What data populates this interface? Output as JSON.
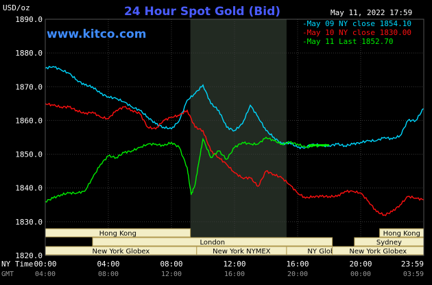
{
  "header": {
    "title": "24 Hour Spot Gold (Bid)",
    "unit": "USD/oz",
    "timestamp": "May 11, 2022 17:59",
    "site": "www.kitco.com"
  },
  "axis_labels": {
    "ny_time": "NY Time",
    "gmt": "GMT"
  },
  "colors": {
    "background": "#000000",
    "grid": "#3a3a3a",
    "highlight": "#222a22",
    "series_may09": "#00d8ff",
    "series_may10": "#ff1010",
    "series_may11": "#00ee00",
    "market_bar": "#f3eec6",
    "market_border": "#b09a50"
  },
  "chart_data": {
    "type": "line",
    "title": "24 Hour Spot Gold (Bid)",
    "ylabel": "USD/oz",
    "xlabel": "",
    "xlim": [
      0,
      24
    ],
    "ylim": [
      1820,
      1890
    ],
    "grid": true,
    "legend_position": "top-right",
    "y_ticks": [
      "1820.0",
      "1830.0",
      "1840.0",
      "1850.0",
      "1860.0",
      "1870.0",
      "1880.0",
      "1890.0"
    ],
    "x_ticks_ny": [
      "00:00",
      "04:00",
      "08:00",
      "12:00",
      "16:00",
      "20:00",
      "23:59"
    ],
    "x_ticks_gmt": [
      "04:00",
      "08:00",
      "12:00",
      "16:00",
      "20:00",
      "00:00",
      "03:59"
    ],
    "series": [
      {
        "name": "May 09 NY close 1854.10",
        "x": [
          0,
          0.5,
          1,
          1.5,
          2,
          2.5,
          3,
          3.5,
          4,
          4.5,
          5,
          5.5,
          6,
          6.5,
          7,
          7.5,
          8,
          8.5,
          9,
          9.5,
          10,
          10.5,
          11,
          11.5,
          12,
          12.5,
          13,
          13.5,
          14,
          14.5,
          15,
          15.5,
          16,
          16.5,
          17,
          17.5,
          18,
          18.5,
          19,
          19.5,
          20,
          20.5,
          21,
          21.5,
          22,
          22.5,
          23,
          23.5,
          23.98
        ],
        "values": [
          1875.5,
          1876,
          1875,
          1874,
          1872,
          1870.5,
          1870,
          1868,
          1867,
          1866.5,
          1865.5,
          1864,
          1863,
          1861,
          1859,
          1858,
          1857.5,
          1860,
          1866,
          1868,
          1870.5,
          1865,
          1863,
          1858,
          1857,
          1859,
          1864.5,
          1861,
          1857,
          1855,
          1853,
          1853.5,
          1852,
          1852,
          1853,
          1852.5,
          1852.5,
          1853,
          1852.5,
          1853,
          1853.5,
          1854,
          1854,
          1855,
          1854.5,
          1855.5,
          1860,
          1860,
          1863.5
        ]
      },
      {
        "name": "May 10 NY close 1830.00",
        "x": [
          0,
          0.5,
          1,
          1.5,
          2,
          2.5,
          3,
          3.5,
          4,
          4.5,
          5,
          5.5,
          6,
          6.5,
          7,
          7.5,
          8,
          8.5,
          9,
          9.5,
          10,
          10.5,
          11,
          11.5,
          12,
          12.5,
          13,
          13.5,
          14,
          14.5,
          15,
          15.5,
          16,
          16.5,
          17,
          17.5,
          18,
          18.5,
          19,
          19.5,
          20,
          20.5,
          21,
          21.5,
          22,
          22.5,
          23,
          23.5,
          23.98
        ],
        "values": [
          1865,
          1864.5,
          1864,
          1864,
          1863,
          1862,
          1862.5,
          1861,
          1860.5,
          1863,
          1864,
          1863,
          1862,
          1858,
          1857.5,
          1860,
          1861,
          1861.5,
          1863,
          1858,
          1857,
          1851,
          1849,
          1847,
          1844.5,
          1843,
          1843,
          1840.5,
          1845,
          1844,
          1843,
          1841,
          1838.5,
          1837,
          1837.5,
          1837.5,
          1837.5,
          1837.5,
          1839,
          1839,
          1838.5,
          1836,
          1833,
          1832,
          1833,
          1835,
          1837.5,
          1837,
          1836.5
        ]
      },
      {
        "name": "May 11 Last 1852.70",
        "x": [
          0,
          0.5,
          1,
          1.5,
          2,
          2.5,
          3,
          3.5,
          4,
          4.5,
          5,
          5.5,
          6,
          6.5,
          7,
          7.5,
          8,
          8.5,
          9,
          9.25,
          9.5,
          9.75,
          10,
          10.5,
          11,
          11.5,
          12,
          12.5,
          13,
          13.5,
          14,
          14.5,
          15,
          15.5,
          16,
          16.5,
          17,
          17.5,
          18
        ],
        "values": [
          1836,
          1837,
          1838,
          1838.5,
          1838.5,
          1839,
          1843,
          1847,
          1849.5,
          1849,
          1850.5,
          1851,
          1852,
          1853,
          1853,
          1852.5,
          1853.5,
          1852,
          1846,
          1838,
          1841,
          1848,
          1854.5,
          1849,
          1851,
          1848.5,
          1852,
          1853.5,
          1853,
          1853,
          1855,
          1854,
          1853,
          1853.5,
          1853,
          1852,
          1852.5,
          1852.5,
          1852.7
        ]
      }
    ],
    "market_bars": [
      {
        "name": "Hong Kong",
        "row": 0,
        "start": 0,
        "end": 9.2
      },
      {
        "name": "London",
        "row": 1,
        "start": 3,
        "end": 18.2
      },
      {
        "name": "New York Globex",
        "row": 2,
        "start": 0,
        "end": 9.6
      },
      {
        "name": "New York NYMEX",
        "row": 2,
        "start": 9.6,
        "end": 15.3
      },
      {
        "name": "NY Globex",
        "row": 2,
        "start": 15.3,
        "end": 20.2
      },
      {
        "name": "Hong Kong",
        "row": 0,
        "start": 21.2,
        "end": 24
      },
      {
        "name": "Sydney",
        "row": 1,
        "start": 19.6,
        "end": 24
      },
      {
        "name": "New York Globex",
        "row": 2,
        "start": 18.2,
        "end": 24
      }
    ],
    "highlight_range": [
      9.2,
      15.3
    ]
  }
}
